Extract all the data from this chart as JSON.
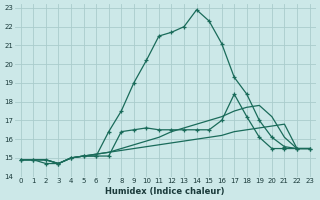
{
  "xlabel": "Humidex (Indice chaleur)",
  "ylabel": "",
  "bg_color": "#cce8e8",
  "grid_color": "#aacccc",
  "line_color": "#1a6b5a",
  "xlim": [
    -0.5,
    23.5
  ],
  "ylim": [
    14,
    23.2
  ],
  "xticks": [
    0,
    1,
    2,
    3,
    4,
    5,
    6,
    7,
    8,
    9,
    10,
    11,
    12,
    13,
    14,
    15,
    16,
    17,
    18,
    19,
    20,
    21,
    22,
    23
  ],
  "yticks": [
    14,
    15,
    16,
    17,
    18,
    19,
    20,
    21,
    22,
    23
  ],
  "series": [
    {
      "x": [
        0,
        1,
        2,
        3,
        4,
        5,
        6,
        7,
        8,
        9,
        10,
        11,
        12,
        13,
        14,
        15,
        16,
        17,
        18,
        19,
        20,
        21,
        22,
        23
      ],
      "y": [
        14.9,
        14.9,
        14.9,
        14.7,
        15.0,
        15.1,
        15.2,
        15.3,
        15.4,
        15.5,
        15.6,
        15.7,
        15.8,
        15.9,
        16.0,
        16.1,
        16.2,
        16.4,
        16.5,
        16.6,
        16.7,
        16.8,
        15.5,
        15.5
      ],
      "marker": false
    },
    {
      "x": [
        0,
        1,
        2,
        3,
        4,
        5,
        6,
        7,
        8,
        9,
        10,
        11,
        12,
        13,
        14,
        15,
        16,
        17,
        18,
        19,
        20,
        21,
        22,
        23
      ],
      "y": [
        14.9,
        14.9,
        14.9,
        14.7,
        15.0,
        15.1,
        15.2,
        15.3,
        15.5,
        15.7,
        15.9,
        16.1,
        16.4,
        16.6,
        16.8,
        17.0,
        17.2,
        17.5,
        17.7,
        17.8,
        17.2,
        16.1,
        15.5,
        15.5
      ],
      "marker": false
    },
    {
      "x": [
        0,
        1,
        2,
        3,
        4,
        5,
        6,
        7,
        8,
        9,
        10,
        11,
        12,
        13,
        14,
        15,
        16,
        17,
        18,
        19,
        20,
        21,
        22,
        23
      ],
      "y": [
        14.9,
        14.9,
        14.7,
        14.7,
        15.0,
        15.1,
        15.1,
        15.1,
        16.4,
        16.5,
        16.6,
        16.5,
        16.5,
        16.5,
        16.5,
        16.5,
        17.0,
        18.4,
        17.2,
        16.1,
        15.5,
        15.5,
        15.5,
        15.5
      ],
      "marker": true
    },
    {
      "x": [
        0,
        1,
        2,
        3,
        4,
        5,
        6,
        7,
        8,
        9,
        10,
        11,
        12,
        13,
        14,
        15,
        16,
        17,
        18,
        19,
        20,
        21,
        22,
        23
      ],
      "y": [
        14.9,
        14.9,
        14.9,
        14.7,
        15.0,
        15.1,
        15.1,
        16.4,
        17.5,
        19.0,
        20.2,
        21.5,
        21.7,
        22.0,
        22.9,
        22.3,
        21.1,
        19.3,
        18.4,
        17.0,
        16.1,
        15.6,
        15.5,
        15.5
      ],
      "marker": true
    }
  ]
}
